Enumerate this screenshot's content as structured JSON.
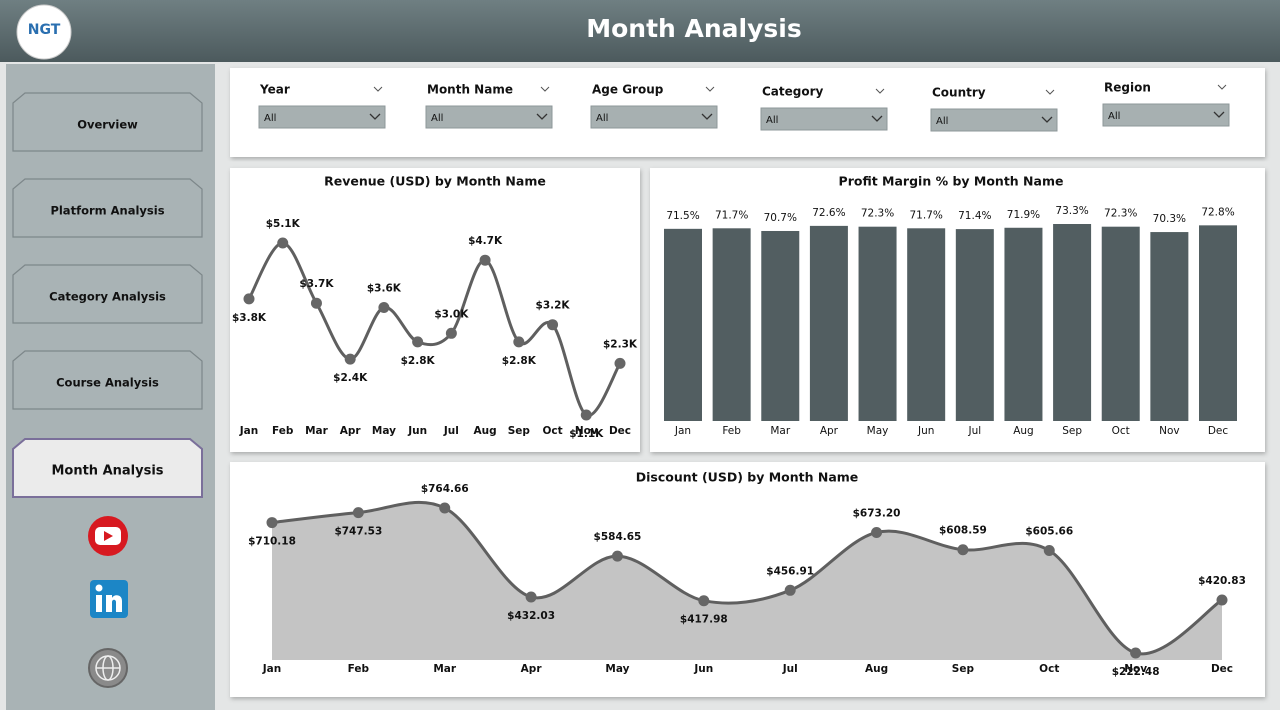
{
  "header": {
    "title": "Month Analysis",
    "logo": "NGT"
  },
  "nav": [
    "Overview",
    "Platform Analysis",
    "Category Analysis",
    "Course Analysis",
    "Month Analysis"
  ],
  "active_nav": 4,
  "filters": [
    {
      "label": "Year",
      "value": "All"
    },
    {
      "label": "Month Name",
      "value": "All"
    },
    {
      "label": "Age Group",
      "value": "All"
    },
    {
      "label": "Category",
      "value": "All"
    },
    {
      "label": "Country",
      "value": "All"
    },
    {
      "label": "Region",
      "value": "All"
    }
  ],
  "chart_data": [
    {
      "type": "line",
      "title": "Revenue (USD) by Month Name",
      "color": "#5f5f5f",
      "categories": [
        "Jan",
        "Feb",
        "Mar",
        "Apr",
        "May",
        "Jun",
        "Jul",
        "Aug",
        "Sep",
        "Oct",
        "Nov",
        "Dec"
      ],
      "values": [
        3800,
        5100,
        3700,
        2400,
        3600,
        2800,
        3000,
        4700,
        2800,
        3200,
        1100,
        2300
      ],
      "value_labels": [
        "$3.8K",
        "$5.1K",
        "$3.7K",
        "$2.4K",
        "$3.6K",
        "$2.8K",
        "$3.0K",
        "$4.7K",
        "$2.8K",
        "$3.2K",
        "$1.1K",
        "$2.3K"
      ]
    },
    {
      "type": "bar",
      "title": "Profit Margin % by Month Name",
      "color": "#525e61",
      "categories": [
        "Jan",
        "Feb",
        "Mar",
        "Apr",
        "May",
        "Jun",
        "Jul",
        "Aug",
        "Sep",
        "Oct",
        "Nov",
        "Dec"
      ],
      "values": [
        71.5,
        71.7,
        70.7,
        72.6,
        72.3,
        71.7,
        71.4,
        71.9,
        73.3,
        72.3,
        70.3,
        72.8
      ],
      "value_labels": [
        "71.5%",
        "71.7%",
        "70.7%",
        "72.6%",
        "72.3%",
        "71.7%",
        "71.4%",
        "71.9%",
        "73.3%",
        "72.3%",
        "70.3%",
        "72.8%"
      ]
    },
    {
      "type": "area",
      "title": "Discount (USD) by Month Name",
      "color": "#5f5f5f",
      "fill": "#c4c4c4",
      "categories": [
        "Jan",
        "Feb",
        "Mar",
        "Apr",
        "May",
        "Jun",
        "Jul",
        "Aug",
        "Sep",
        "Oct",
        "Nov",
        "Dec"
      ],
      "values": [
        710.18,
        747.53,
        764.66,
        432.03,
        584.65,
        417.98,
        456.91,
        673.2,
        608.59,
        605.66,
        222.48,
        420.83
      ],
      "value_labels": [
        "$710.18",
        "$747.53",
        "$764.66",
        "$432.03",
        "$584.65",
        "$417.98",
        "$456.91",
        "$673.20",
        "$608.59",
        "$605.66",
        "$222.48",
        "$420.83"
      ]
    }
  ]
}
